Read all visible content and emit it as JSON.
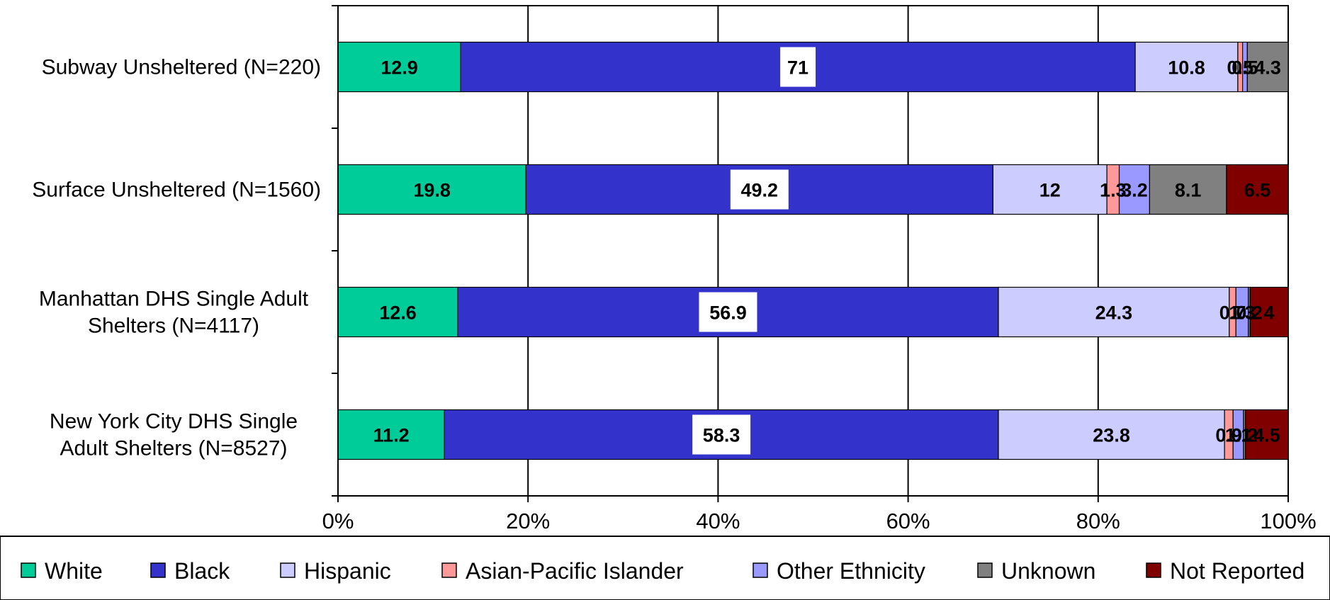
{
  "chart_data": {
    "type": "bar",
    "orientation": "horizontal",
    "stacked": "percent",
    "categories": [
      [
        "Subway Unsheltered (N=220)"
      ],
      [
        "Surface Unsheltered (N=1560)"
      ],
      [
        "Manhattan DHS Single Adult",
        "Shelters (N=4117)"
      ],
      [
        "New York City DHS Single",
        "Adult Shelters (N=8527)"
      ]
    ],
    "series": [
      {
        "name": "White",
        "color": "#00CC99",
        "values": [
          12.9,
          19.8,
          12.6,
          11.2
        ]
      },
      {
        "name": "Black",
        "color": "#3333CC",
        "values": [
          71,
          49.2,
          56.9,
          58.3
        ]
      },
      {
        "name": "Hispanic",
        "color": "#CCCCFF",
        "values": [
          10.8,
          12,
          24.3,
          23.8
        ]
      },
      {
        "name": "Asian-Pacific Islander",
        "color": "#FF9999",
        "values": [
          0.5,
          1.3,
          0.7,
          0.9
        ]
      },
      {
        "name": "Other Ethnicity",
        "color": "#9999FF",
        "values": [
          0.5,
          3.2,
          1.3,
          1.1
        ]
      },
      {
        "name": "Unknown",
        "color": "#808080",
        "values": [
          4.3,
          8.1,
          0.2,
          0.2
        ]
      },
      {
        "name": "Not Reported",
        "color": "#800000",
        "values": [
          0,
          6.5,
          4,
          4.5
        ]
      }
    ],
    "segment_labels": [
      [
        "12.9",
        "71",
        "10.8",
        "0.5",
        "0.5",
        "4.3",
        ""
      ],
      [
        "19.8",
        "49.2",
        "12",
        "1.3",
        "3.2",
        "8.1",
        "6.5"
      ],
      [
        "12.6",
        "56.9",
        "24.3",
        "0.7",
        "1.3",
        "0.2",
        "4"
      ],
      [
        "11.2",
        "58.3",
        "23.8",
        "0.9",
        "1.1",
        "0.2",
        "4.5"
      ]
    ],
    "x_ticks": [
      "0%",
      "20%",
      "40%",
      "60%",
      "80%",
      "100%"
    ],
    "xlim": [
      0,
      100
    ],
    "grid": true,
    "legend_position": "bottom"
  }
}
